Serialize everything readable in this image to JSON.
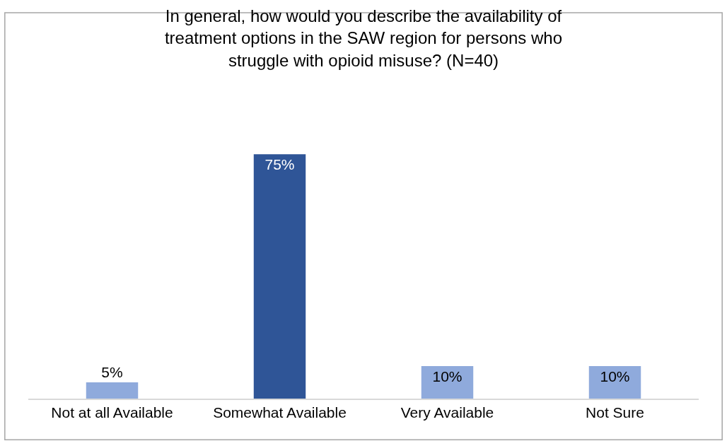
{
  "chart_data": {
    "type": "bar",
    "title": "In general, how would you describe the availability of treatment options in the SAW region for persons who struggle with opioid misuse? (N=40)",
    "categories": [
      "Not at all Available",
      "Somewhat Available",
      "Very Available",
      "Not Sure"
    ],
    "values": [
      5,
      75,
      10,
      10
    ],
    "value_labels": [
      "5%",
      "75%",
      "10%",
      "10%"
    ],
    "colors": [
      "#8faadc",
      "#2f5597",
      "#8faadc",
      "#8faadc"
    ]
  }
}
